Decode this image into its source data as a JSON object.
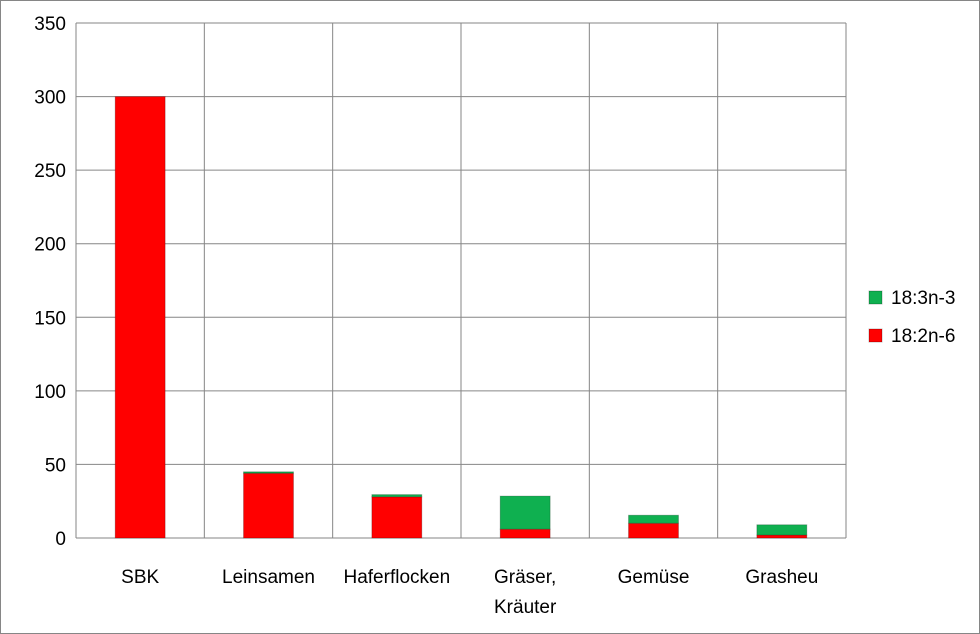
{
  "chart_data": {
    "type": "bar",
    "stacked": true,
    "categories": [
      [
        "SBK"
      ],
      [
        "Leinsamen"
      ],
      [
        "Haferflocken"
      ],
      [
        "Gräser,",
        "Kräuter"
      ],
      [
        "Gemüse"
      ],
      [
        "Grasheu"
      ]
    ],
    "series": [
      {
        "name": "18:2n-6",
        "color": "#FF0000",
        "values": [
          300,
          44,
          28,
          6,
          10,
          2
        ]
      },
      {
        "name": "18:3n-3",
        "color": "#0FB050",
        "values": [
          0,
          1,
          1.5,
          22.5,
          5.5,
          7
        ]
      }
    ],
    "ylim": [
      0,
      350
    ],
    "yticks": [
      0,
      50,
      100,
      150,
      200,
      250,
      300,
      350
    ],
    "grid": true,
    "legend": "right"
  }
}
